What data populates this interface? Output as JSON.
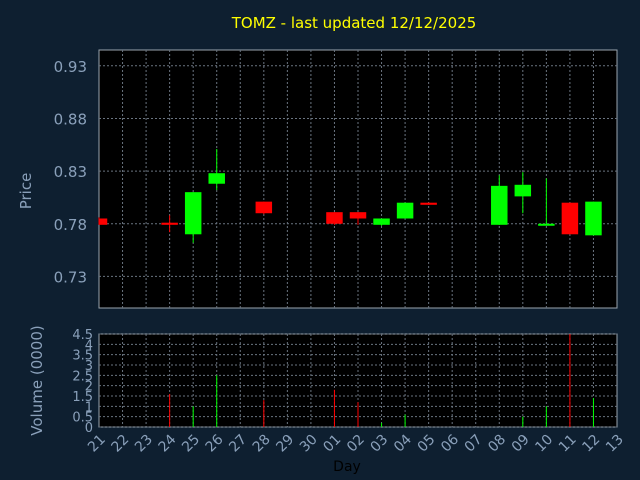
{
  "chart_data": {
    "type": "candlestick",
    "title": "TOMZ - last updated 12/12/2025",
    "xlabel": "Day",
    "ylabel_price": "Price",
    "ylabel_volume": "Volume (0000)",
    "grid": true,
    "price_ylim": [
      0.7,
      0.945
    ],
    "price_ticks": [
      "0.93",
      "0.88",
      "0.83",
      "0.78",
      "0.73"
    ],
    "volume_ylim": [
      0,
      4.5
    ],
    "volume_ticks": [
      "0",
      "0.5",
      "1",
      "1.5",
      "2",
      "2.5",
      "3",
      "3.5",
      "4",
      "4.5"
    ],
    "categories": [
      "21",
      "22",
      "23",
      "24",
      "25",
      "26",
      "27",
      "28",
      "29",
      "30",
      "01",
      "02",
      "03",
      "04",
      "05",
      "06",
      "07",
      "08",
      "09",
      "10",
      "11",
      "12",
      "13"
    ],
    "candles": [
      {
        "day": "21",
        "open": 0.785,
        "high": 0.786,
        "low": 0.779,
        "close": 0.779,
        "volume": 0
      },
      {
        "day": "24",
        "open": 0.781,
        "high": 0.788,
        "low": 0.772,
        "close": 0.779,
        "volume": 1.6
      },
      {
        "day": "25",
        "open": 0.77,
        "high": 0.81,
        "low": 0.762,
        "close": 0.81,
        "volume": 1.0
      },
      {
        "day": "26",
        "open": 0.818,
        "high": 0.851,
        "low": 0.812,
        "close": 0.828,
        "volume": 2.5
      },
      {
        "day": "28",
        "open": 0.801,
        "high": 0.801,
        "low": 0.789,
        "close": 0.79,
        "volume": 1.3
      },
      {
        "day": "01",
        "open": 0.791,
        "high": 0.791,
        "low": 0.779,
        "close": 0.78,
        "volume": 1.8
      },
      {
        "day": "02",
        "open": 0.791,
        "high": 0.791,
        "low": 0.779,
        "close": 0.785,
        "volume": 1.2
      },
      {
        "day": "03",
        "open": 0.779,
        "high": 0.785,
        "low": 0.778,
        "close": 0.785,
        "volume": 0.2
      },
      {
        "day": "04",
        "open": 0.785,
        "high": 0.8,
        "low": 0.785,
        "close": 0.8,
        "volume": 0.6
      },
      {
        "day": "05",
        "open": 0.8,
        "high": 0.8,
        "low": 0.798,
        "close": 0.798,
        "volume": 0
      },
      {
        "day": "08",
        "open": 0.779,
        "high": 0.826,
        "low": 0.779,
        "close": 0.816,
        "volume": 0
      },
      {
        "day": "09",
        "open": 0.806,
        "high": 0.829,
        "low": 0.79,
        "close": 0.817,
        "volume": 0.5
      },
      {
        "day": "10",
        "open": 0.779,
        "high": 0.823,
        "low": 0.779,
        "close": 0.78,
        "volume": 1.0
      },
      {
        "day": "11",
        "open": 0.8,
        "high": 0.8,
        "low": 0.77,
        "close": 0.77,
        "volume": 4.7
      },
      {
        "day": "12",
        "open": 0.769,
        "high": 0.801,
        "low": 0.769,
        "close": 0.801,
        "volume": 1.4
      }
    ]
  },
  "colors": {
    "background": "#0e1f30",
    "plot_background": "#000000",
    "grid": "#6a7480",
    "axis_text": "#8aa0ba",
    "title": "#ffff00",
    "up": "#00ff00",
    "down": "#ff0000",
    "border": "#9aa4ae"
  }
}
